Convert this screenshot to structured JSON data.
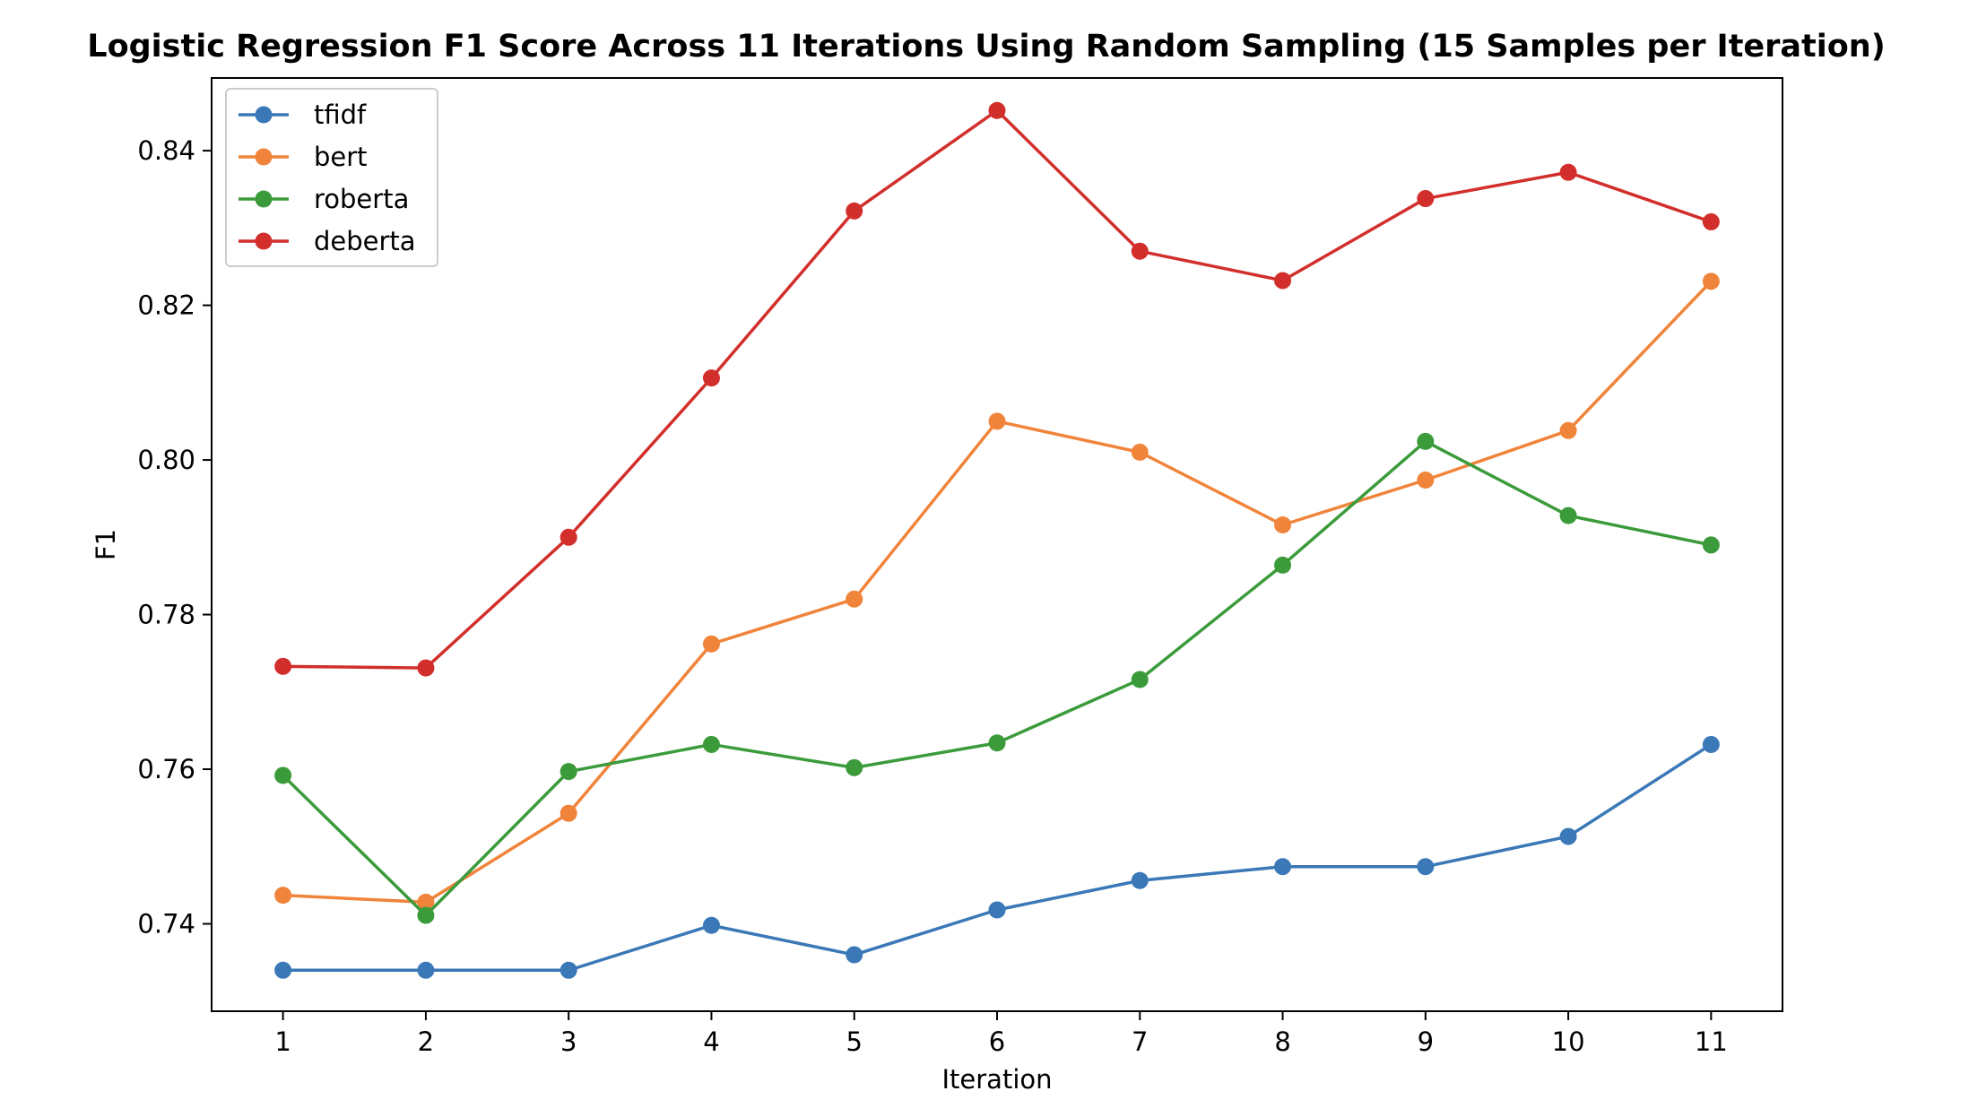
{
  "chart_data": {
    "type": "line",
    "title": "Logistic Regression F1 Score Across 11 Iterations Using Random Sampling (15 Samples per Iteration)",
    "xlabel": "Iteration",
    "ylabel": "F1",
    "x": [
      1,
      2,
      3,
      4,
      5,
      6,
      7,
      8,
      9,
      10,
      11
    ],
    "x_ticks": [
      "1",
      "2",
      "3",
      "4",
      "5",
      "6",
      "7",
      "8",
      "9",
      "10",
      "11"
    ],
    "xlim": [
      0.5,
      11.5
    ],
    "ylim": [
      0.7287,
      0.8494
    ],
    "y_ticks": [
      "0.74",
      "0.76",
      "0.78",
      "0.80",
      "0.82",
      "0.84"
    ],
    "grid": false,
    "legend_position": "top-left",
    "series": [
      {
        "name": "tfidf",
        "color": "#3a78b7",
        "values": [
          0.734,
          0.734,
          0.734,
          0.7398,
          0.736,
          0.7418,
          0.7456,
          0.7474,
          0.7474,
          0.7513,
          0.7632
        ]
      },
      {
        "name": "bert",
        "color": "#f0843a",
        "values": [
          0.7437,
          0.7428,
          0.7543,
          0.7762,
          0.782,
          0.805,
          0.801,
          0.7916,
          0.7974,
          0.8038,
          0.8231
        ]
      },
      {
        "name": "roberta",
        "color": "#3b9b3b",
        "values": [
          0.7592,
          0.7411,
          0.7597,
          0.7632,
          0.7602,
          0.7634,
          0.7716,
          0.7864,
          0.8024,
          0.7928,
          0.789
        ]
      },
      {
        "name": "deberta",
        "color": "#d22f2c",
        "values": [
          0.7733,
          0.7731,
          0.79,
          0.8106,
          0.8322,
          0.8452,
          0.827,
          0.8232,
          0.8338,
          0.8372,
          0.8308
        ]
      }
    ]
  }
}
